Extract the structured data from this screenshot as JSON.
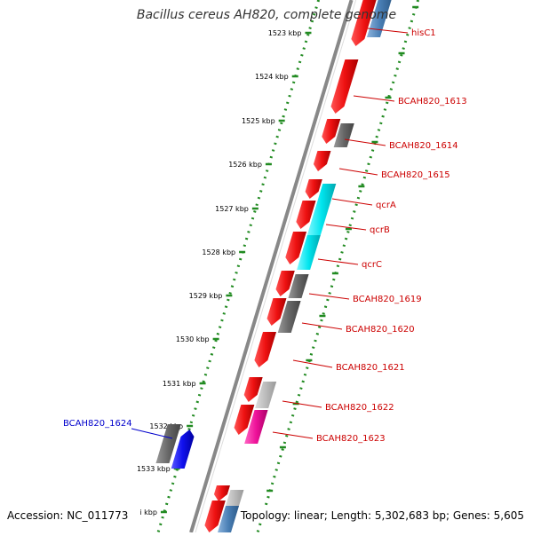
{
  "title": "Bacillus cereus AH820, complete genome",
  "accession": "Accession: NC_011773",
  "summary": "Topology: linear; Length: 5,302,683 bp; Genes: 5,605",
  "colors": {
    "backbone": "#888888",
    "tick": "#228B22",
    "label_red": "#cc0000",
    "label_blue": "#0000cc",
    "red": "#ee1111",
    "cyan": "#00e5ee",
    "dark_gray": "#666666",
    "light_gray": "#bbbbbb",
    "blue": "#1010ee",
    "steel_blue": "#4a7fb5",
    "pink": "#ee1199"
  },
  "ruler": {
    "ticks": [
      {
        "label": "1523 kbp"
      },
      {
        "label": "1524 kbp"
      },
      {
        "label": "1525 kbp"
      },
      {
        "label": "1526 kbp"
      },
      {
        "label": "1527 kbp"
      },
      {
        "label": "1528 kbp"
      },
      {
        "label": "1529 kbp"
      },
      {
        "label": "1530 kbp"
      },
      {
        "label": "1531 kbp"
      },
      {
        "label": "1532 kbp"
      },
      {
        "label": "1533 kbp"
      },
      {
        "label": "i kbp"
      }
    ]
  },
  "gene_labels": [
    {
      "text": "hisC1",
      "color": "red"
    },
    {
      "text": "BCAH820_1613",
      "color": "red"
    },
    {
      "text": "BCAH820_1614",
      "color": "red"
    },
    {
      "text": "BCAH820_1615",
      "color": "red"
    },
    {
      "text": "qcrA",
      "color": "red"
    },
    {
      "text": "qcrB",
      "color": "red"
    },
    {
      "text": "qcrC",
      "color": "red"
    },
    {
      "text": "BCAH820_1619",
      "color": "red"
    },
    {
      "text": "BCAH820_1620",
      "color": "red"
    },
    {
      "text": "BCAH820_1621",
      "color": "red"
    },
    {
      "text": "BCAH820_1622",
      "color": "red"
    },
    {
      "text": "BCAH820_1623",
      "color": "red"
    },
    {
      "text": "BCAH820_1624",
      "color": "blue"
    }
  ]
}
